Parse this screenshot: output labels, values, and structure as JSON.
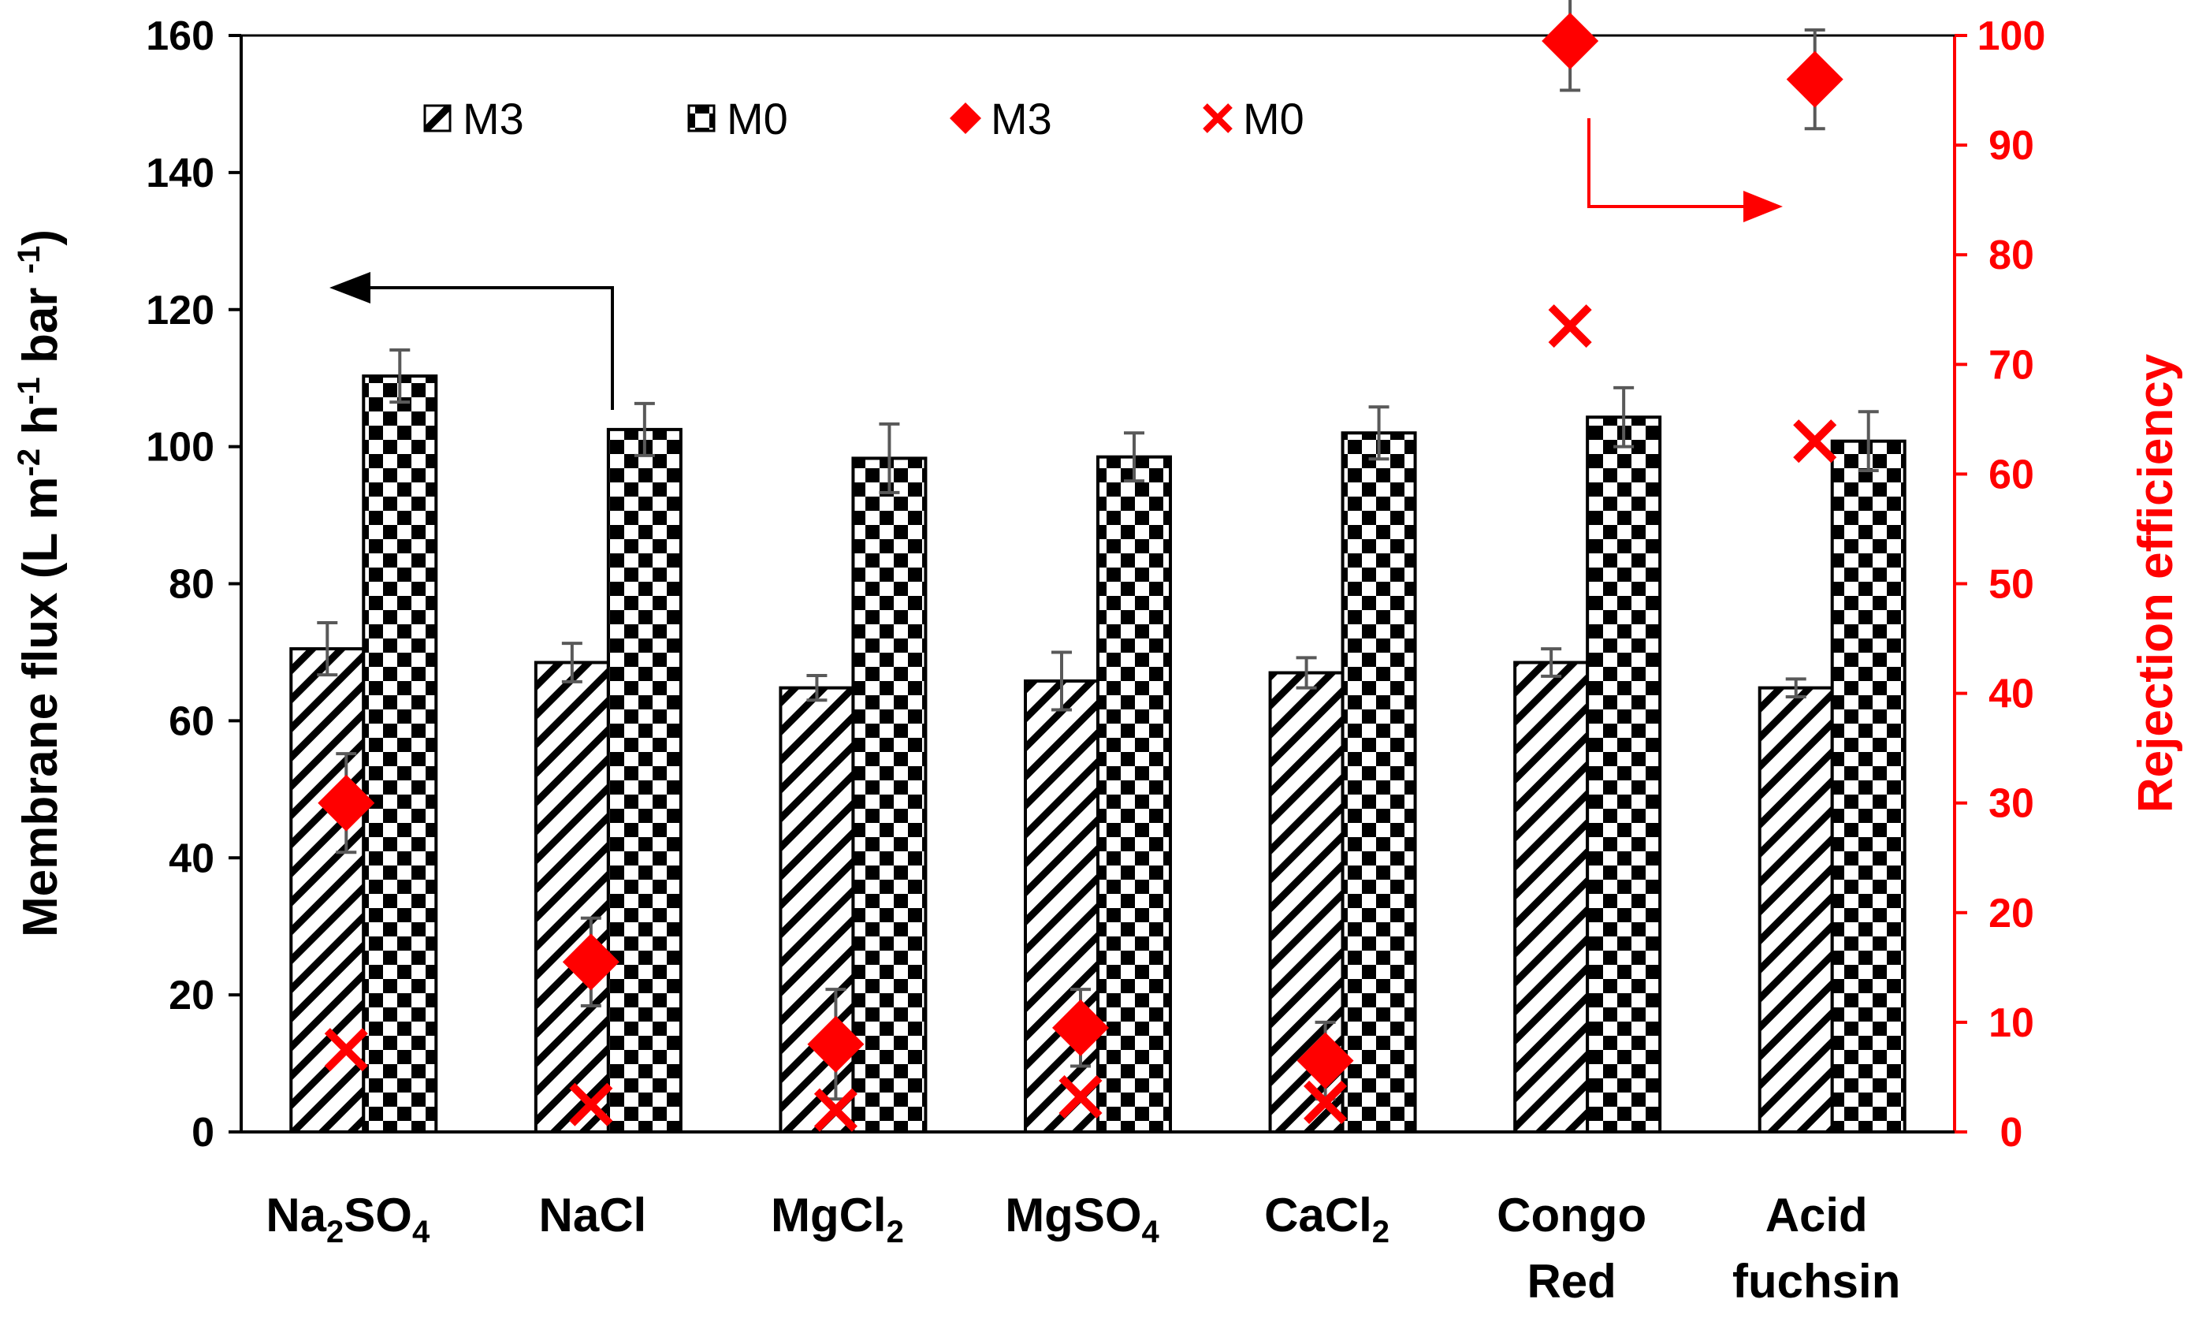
{
  "chart_data": {
    "type": "bar",
    "categories": [
      "Na2SO4",
      "NaCl",
      "MgCl2",
      "MgSO4",
      "CaCl2",
      "Congo Red",
      "Acid fuchsin"
    ],
    "category_labels": [
      [
        {
          "t": "Na"
        },
        {
          "t": "2",
          "sub": true
        },
        {
          "t": "SO"
        },
        {
          "t": "4",
          "sub": true
        }
      ],
      [
        {
          "t": "NaCl"
        }
      ],
      [
        {
          "t": "MgCl"
        },
        {
          "t": "2",
          "sub": true
        }
      ],
      [
        {
          "t": "MgSO"
        },
        {
          "t": "4",
          "sub": true
        }
      ],
      [
        {
          "t": "CaCl"
        },
        {
          "t": "2",
          "sub": true
        }
      ],
      [
        {
          "t": "Congo"
        },
        {
          "t": "Red",
          "newline": true
        }
      ],
      [
        {
          "t": "Acid"
        },
        {
          "t": "fuchsin",
          "newline": true
        }
      ]
    ],
    "series": [
      {
        "name": "M3",
        "kind": "bar",
        "axis": "left",
        "pattern": "hatch",
        "values": [
          70.5,
          68.5,
          64.8,
          65.8,
          67,
          68.5,
          64.8
        ],
        "errors": [
          3.8,
          2.8,
          1.8,
          4.2,
          2.2,
          2.0,
          1.3
        ]
      },
      {
        "name": "M0",
        "kind": "bar",
        "axis": "left",
        "pattern": "checker",
        "values": [
          110.3,
          102.5,
          98.3,
          98.5,
          102,
          104.3,
          100.8
        ],
        "errors": [
          3.8,
          3.8,
          5,
          3.5,
          3.8,
          4.3,
          4.3
        ]
      },
      {
        "name": "M3",
        "kind": "diamond",
        "axis": "right",
        "color": "#ff0000",
        "values": [
          30,
          15.5,
          8,
          9.5,
          6.5,
          99.5,
          96
        ],
        "errors": [
          4.5,
          4,
          5,
          3.5,
          3.5,
          4.5,
          4.5
        ]
      },
      {
        "name": "M0",
        "kind": "cross",
        "axis": "right",
        "color": "#ff0000",
        "values": [
          7.5,
          2.5,
          2,
          3.2,
          2.7,
          73.5,
          63
        ],
        "errors": []
      }
    ],
    "ylabel": "Membrane flux (L m-2 h-1 bar-1)",
    "ylabel_parts": [
      {
        "t": "Membrane flux (L m"
      },
      {
        "t": "-2",
        "sup": true
      },
      {
        "t": " h"
      },
      {
        "t": "-1",
        "sup": true
      },
      {
        "t": " bar "
      },
      {
        "t": "-1",
        "sup": true
      },
      {
        "t": ")"
      }
    ],
    "y2label": "Rejection efficiency",
    "ylim": [
      0,
      160
    ],
    "y2lim": [
      0,
      100
    ],
    "yticks": [
      "0",
      "20",
      "40",
      "60",
      "80",
      "100",
      "120",
      "140",
      "160"
    ],
    "y2ticks": [
      "0",
      "10",
      "20",
      "30",
      "40",
      "50",
      "60",
      "70",
      "80",
      "90",
      "100"
    ],
    "legend_position": "top",
    "legend": [
      {
        "label": "M3",
        "kind": "hatch"
      },
      {
        "label": "M0",
        "kind": "checker"
      },
      {
        "label": "M3",
        "kind": "diamond"
      },
      {
        "label": "M0",
        "kind": "cross"
      }
    ],
    "annotations": [
      {
        "kind": "arrow",
        "direction": "left",
        "target_axis": "left"
      },
      {
        "kind": "arrow",
        "direction": "right",
        "target_axis": "right"
      }
    ],
    "colors": {
      "left_axis": "#000000",
      "right_axis": "#ff0000",
      "error_bar": "#595959"
    }
  }
}
